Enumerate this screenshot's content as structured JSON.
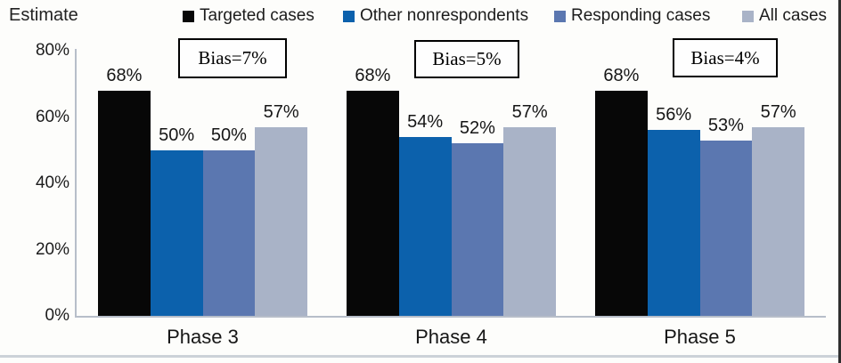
{
  "chart_data": {
    "type": "bar",
    "title": "Estimate",
    "categories": [
      "Phase 3",
      "Phase 4",
      "Phase 5"
    ],
    "series": [
      {
        "name": "Targeted cases",
        "color": "#070707",
        "values": [
          68,
          68,
          68
        ],
        "labels": [
          "68%",
          "68%",
          "68%"
        ]
      },
      {
        "name": "Other nonrespondents",
        "color": "#0c61ac",
        "values": [
          50,
          54,
          56
        ],
        "labels": [
          "50%",
          "54%",
          "56%"
        ]
      },
      {
        "name": "Responding cases",
        "color": "#5b77b0",
        "values": [
          50,
          52,
          53
        ],
        "labels": [
          "50%",
          "52%",
          "53%"
        ]
      },
      {
        "name": "All cases",
        "color": "#a9b3c7",
        "values": [
          57,
          57,
          57
        ],
        "labels": [
          "57%",
          "57%",
          "57%"
        ]
      }
    ],
    "annotations": [
      {
        "text": "Bias=7%"
      },
      {
        "text": "Bias=5%"
      },
      {
        "text": "Bias=4%"
      }
    ],
    "y_ticks": [
      {
        "value": 0,
        "label": "0%"
      },
      {
        "value": 20,
        "label": "20%"
      },
      {
        "value": 40,
        "label": "40%"
      },
      {
        "value": 60,
        "label": "60%"
      },
      {
        "value": 80,
        "label": "80%"
      }
    ],
    "ylim": [
      0,
      80
    ],
    "xlabel": "",
    "ylabel": "Estimate",
    "legend_position": "top",
    "grid": false
  }
}
